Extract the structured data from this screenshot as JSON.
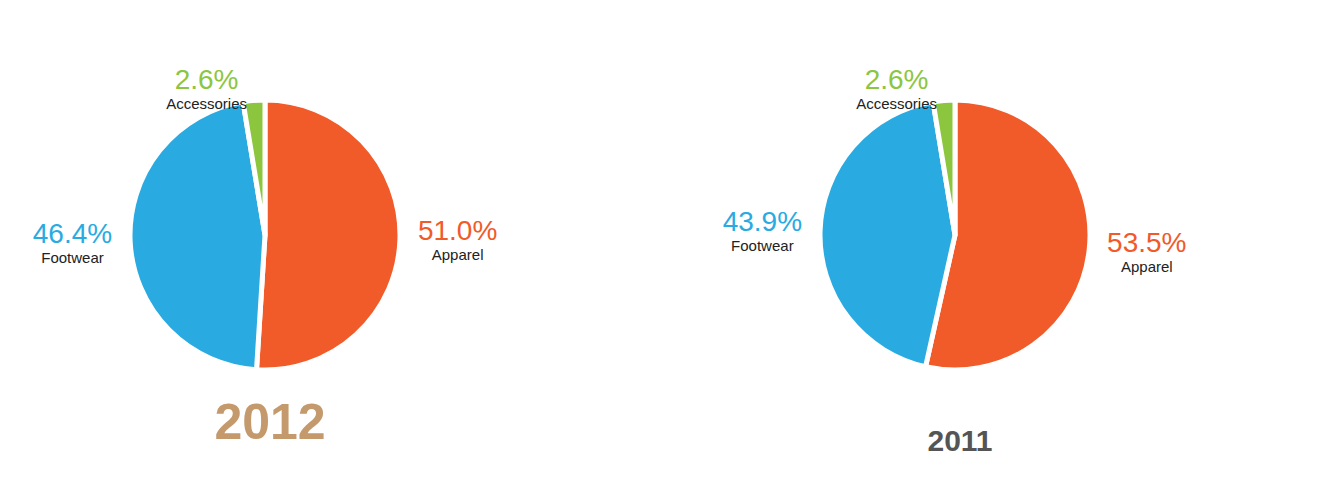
{
  "chart_data": [
    {
      "type": "pie",
      "title": "2012",
      "categories": [
        "Apparel",
        "Footwear",
        "Accessories"
      ],
      "values": [
        51.0,
        46.4,
        2.6
      ],
      "value_labels": [
        "51.0%",
        "46.4%",
        "2.6%"
      ],
      "colors": [
        "#f15a29",
        "#29abe2",
        "#8cc63f"
      ],
      "data_labels": true
    },
    {
      "type": "pie",
      "title": "2011",
      "categories": [
        "Apparel",
        "Footwear",
        "Accessories"
      ],
      "values": [
        53.5,
        43.9,
        2.6
      ],
      "value_labels": [
        "53.5%",
        "43.9%",
        "2.6%"
      ],
      "colors": [
        "#f15a29",
        "#29abe2",
        "#8cc63f"
      ],
      "data_labels": true
    }
  ]
}
